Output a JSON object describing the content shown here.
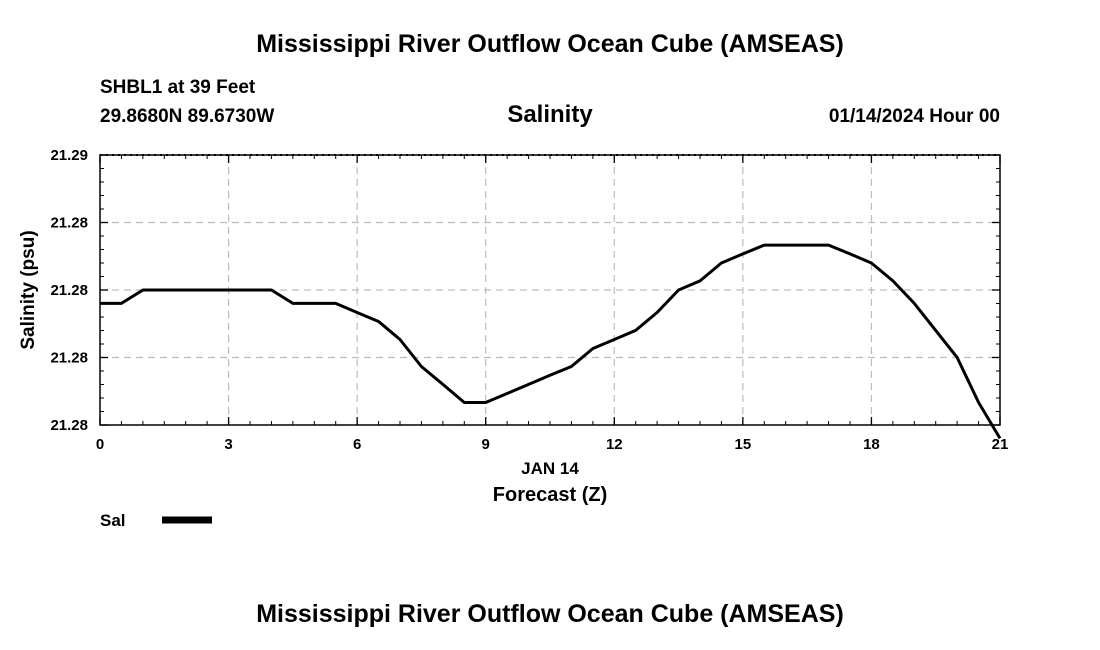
{
  "header": {
    "title": "Mississippi River Outflow Ocean Cube (AMSEAS)",
    "station": "SHBL1 at 39 Feet",
    "coords": "29.8680N  89.6730W",
    "datetime": "01/14/2024 Hour 00"
  },
  "footer": {
    "title": "Mississippi River Outflow Ocean Cube (AMSEAS)"
  },
  "chart_data": {
    "type": "line",
    "title": "Salinity",
    "xlabel": "Forecast (Z)",
    "xlabel_date": "JAN 14",
    "ylabel": "Salinity (psu)",
    "xlim": [
      0,
      21
    ],
    "ylim": [
      21.275,
      21.2875
    ],
    "x_ticks": [
      0,
      3,
      6,
      9,
      12,
      15,
      18,
      21
    ],
    "y_ticks": [
      21.275,
      21.278125,
      21.28125,
      21.284375,
      21.2875
    ],
    "y_tick_labels": [
      "21.28",
      "21.28",
      "21.28",
      "21.28",
      "21.29"
    ],
    "grid": true,
    "legend_position": "bottom-left",
    "series": [
      {
        "name": "Sal",
        "color": "#000000",
        "x": [
          0,
          0.5,
          1,
          1.5,
          2,
          2.5,
          3,
          3.5,
          4,
          4.5,
          5,
          5.5,
          6,
          6.5,
          7,
          7.5,
          8,
          8.5,
          9,
          9.5,
          10,
          10.5,
          11,
          11.5,
          12,
          12.5,
          13,
          13.5,
          14,
          14.5,
          15,
          15.5,
          16,
          16.5,
          17,
          17.5,
          18,
          18.5,
          19,
          19.5,
          20,
          20.5,
          21
        ],
        "values": [
          21.28063,
          21.28063,
          21.28125,
          21.28125,
          21.28125,
          21.28125,
          21.28125,
          21.28125,
          21.28125,
          21.28063,
          21.28063,
          21.28063,
          21.28021,
          21.27979,
          21.27896,
          21.27771,
          21.27688,
          21.27604,
          21.27604,
          21.27646,
          21.27688,
          21.2773,
          21.27771,
          21.27854,
          21.27896,
          21.27938,
          21.28021,
          21.28125,
          21.28167,
          21.2825,
          21.28292,
          21.28333,
          21.28333,
          21.28333,
          21.28333,
          21.28292,
          21.2825,
          21.28167,
          21.28063,
          21.27938,
          21.27813,
          21.27604,
          21.27438
        ]
      }
    ]
  }
}
